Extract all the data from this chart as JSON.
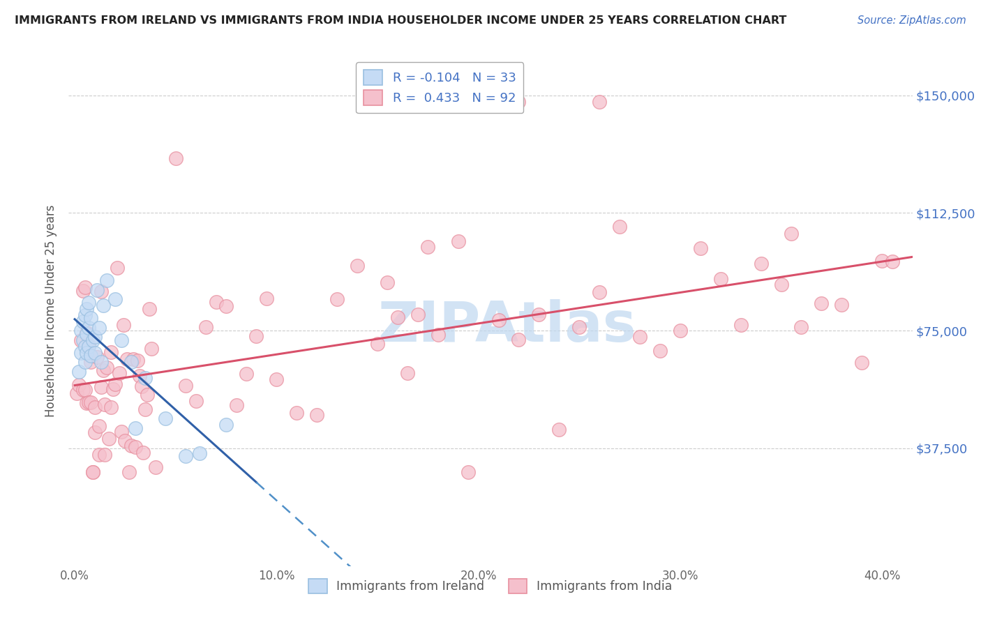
{
  "title": "IMMIGRANTS FROM IRELAND VS IMMIGRANTS FROM INDIA HOUSEHOLDER INCOME UNDER 25 YEARS CORRELATION CHART",
  "source": "Source: ZipAtlas.com",
  "ylabel": "Householder Income Under 25 years",
  "xlabel_ticks": [
    "0.0%",
    "10.0%",
    "20.0%",
    "30.0%",
    "40.0%"
  ],
  "xlabel_vals": [
    0.0,
    0.1,
    0.2,
    0.3,
    0.4
  ],
  "ytick_labels": [
    "$37,500",
    "$75,000",
    "$112,500",
    "$150,000"
  ],
  "ytick_vals": [
    37500,
    75000,
    112500,
    150000
  ],
  "ylim": [
    0,
    162500
  ],
  "xlim": [
    -0.003,
    0.415
  ],
  "r_ireland": -0.104,
  "n_ireland": 33,
  "r_india": 0.433,
  "n_india": 92,
  "ireland_color": "#99bfe0",
  "ireland_face": "#c5dbf5",
  "india_color": "#e8909f",
  "india_face": "#f5c0cc",
  "ireland_line_color": "#5090c8",
  "ireland_line_solid_color": "#3060a8",
  "india_line_color": "#d8506a",
  "watermark": "ZIPAtlas",
  "watermark_color": "#c0d8f0",
  "legend_label_ireland": "Immigrants from Ireland",
  "legend_label_india": "Immigrants from India",
  "background_color": "#ffffff",
  "grid_color": "#cccccc",
  "title_color": "#222222",
  "source_color": "#4472c4",
  "legend_text_color": "#4472c4",
  "ytick_color": "#4472c4",
  "xtick_color": "#666666",
  "ylabel_color": "#555555"
}
